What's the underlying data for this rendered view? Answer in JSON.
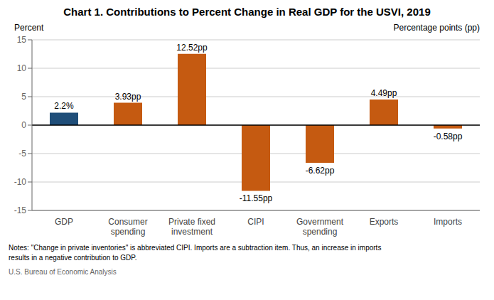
{
  "chart_data": {
    "type": "bar",
    "title": "Chart 1. Contributions to Percent Change in Real GDP for the USVI, 2019",
    "ylabel": "Percent",
    "ylabel_right": "Percentage points (pp)",
    "categories": [
      "GDP",
      "Consumer\nspending",
      "Private fixed\ninvestment",
      "CIPI",
      "Government\nspending",
      "Exports",
      "Imports"
    ],
    "values": [
      2.2,
      3.93,
      12.52,
      -11.55,
      -6.62,
      4.49,
      -0.58
    ],
    "value_labels": [
      "2.2%",
      "3.93pp",
      "12.52pp",
      "-11.55pp",
      "-6.62pp",
      "4.49pp",
      "-0.58pp"
    ],
    "colors": [
      "#1f4e79",
      "#c55a11",
      "#c55a11",
      "#c55a11",
      "#c55a11",
      "#c55a11",
      "#c55a11"
    ],
    "ylim": [
      -15,
      15
    ],
    "yticks": [
      -15,
      -10,
      -5,
      0,
      5,
      10,
      15
    ],
    "grid": true,
    "data_labels": true,
    "notes": [
      "Notes: \"Change in private inventories\" is abbreviated CIPI. Imports are a subtraction item. Thus, an increase in imports",
      "results in a negative contribution to GDP."
    ],
    "source": "U.S. Bureau of Economic Analysis"
  }
}
